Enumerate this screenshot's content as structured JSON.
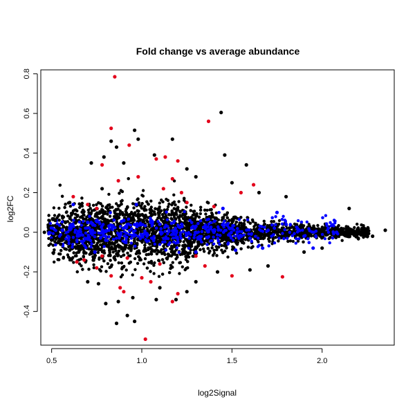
{
  "chart_data": {
    "type": "scatter",
    "title": "Fold change vs average abundance",
    "xlabel": "log2Signal",
    "ylabel": "log2FC",
    "xlim": [
      0.44,
      2.4
    ],
    "ylim": [
      -0.57,
      0.82
    ],
    "x_ticks": [
      0.5,
      1.0,
      1.5,
      2.0
    ],
    "x_tick_labels": [
      "0.5",
      "1.0",
      "1.5",
      "2.0"
    ],
    "y_ticks": [
      -0.4,
      -0.2,
      0.0,
      0.2,
      0.4,
      0.6,
      0.8
    ],
    "y_tick_labels": [
      "-0.4",
      "-0.2",
      "0.0",
      "0.2",
      "0.4",
      "0.6",
      "0.8"
    ],
    "grid": false,
    "legend": "none",
    "colors": {
      "background": "#000000",
      "blue": "#0000ff",
      "red": "#e3001b"
    },
    "series": [
      {
        "color": "#e3001b",
        "points": [
          [
            0.85,
            0.785
          ],
          [
            0.83,
            0.525
          ],
          [
            0.93,
            0.44
          ],
          [
            1.37,
            0.56
          ],
          [
            1.08,
            0.37
          ],
          [
            1.13,
            0.38
          ],
          [
            1.2,
            0.36
          ],
          [
            0.78,
            0.34
          ],
          [
            0.87,
            0.26
          ],
          [
            0.98,
            0.28
          ],
          [
            1.17,
            0.27
          ],
          [
            0.62,
            0.18
          ],
          [
            0.75,
            0.12
          ],
          [
            1.12,
            0.22
          ],
          [
            1.55,
            0.2
          ],
          [
            1.62,
            0.24
          ],
          [
            0.64,
            -0.15
          ],
          [
            0.68,
            -0.14
          ],
          [
            0.75,
            -0.18
          ],
          [
            0.83,
            -0.22
          ],
          [
            0.88,
            -0.28
          ],
          [
            0.9,
            -0.3
          ],
          [
            1.0,
            -0.23
          ],
          [
            1.05,
            -0.25
          ],
          [
            1.17,
            -0.35
          ],
          [
            1.2,
            -0.31
          ],
          [
            1.02,
            -0.54
          ],
          [
            1.5,
            -0.22
          ],
          [
            1.78,
            -0.225
          ],
          [
            1.35,
            -0.17
          ],
          [
            0.7,
            0.14
          ],
          [
            1.25,
            0.15
          ],
          [
            1.4,
            0.13
          ],
          [
            0.92,
            -0.13
          ],
          [
            1.1,
            -0.16
          ],
          [
            1.3,
            -0.12
          ],
          [
            0.78,
            -0.12
          ],
          [
            1.22,
            0.2
          ]
        ]
      },
      {
        "color": "#000000",
        "points": [
          [
            1.44,
            0.605
          ],
          [
            0.83,
            0.46
          ],
          [
            0.86,
            0.43
          ],
          [
            0.96,
            0.515
          ],
          [
            0.98,
            0.47
          ],
          [
            1.17,
            0.47
          ],
          [
            1.07,
            0.39
          ],
          [
            1.46,
            0.39
          ],
          [
            1.58,
            0.34
          ],
          [
            0.79,
            0.38
          ],
          [
            0.9,
            0.35
          ],
          [
            0.78,
            0.22
          ],
          [
            0.72,
            0.35
          ],
          [
            1.3,
            0.28
          ],
          [
            1.25,
            0.32
          ],
          [
            0.86,
            -0.46
          ],
          [
            0.96,
            -0.45
          ],
          [
            0.92,
            -0.42
          ],
          [
            0.8,
            -0.36
          ],
          [
            0.87,
            -0.35
          ],
          [
            0.95,
            -0.33
          ],
          [
            1.08,
            -0.34
          ],
          [
            1.19,
            -0.34
          ],
          [
            1.25,
            -0.3
          ],
          [
            1.1,
            -0.28
          ],
          [
            0.76,
            -0.26
          ],
          [
            0.7,
            -0.25
          ],
          [
            1.3,
            -0.25
          ],
          [
            1.42,
            -0.2
          ],
          [
            1.6,
            -0.19
          ],
          [
            1.7,
            -0.17
          ],
          [
            1.9,
            -0.1
          ],
          [
            2.0,
            -0.08
          ],
          [
            2.15,
            0.12
          ],
          [
            2.35,
            0.01
          ],
          [
            2.28,
            -0.02
          ],
          [
            2.2,
            -0.03
          ],
          [
            1.8,
            0.18
          ],
          [
            1.65,
            0.2
          ],
          [
            1.5,
            0.25
          ],
          [
            0.6,
            0.15
          ],
          [
            0.56,
            0.08
          ],
          [
            0.52,
            0.06
          ],
          [
            0.46,
            0.0
          ],
          [
            0.5,
            -0.04
          ],
          [
            0.55,
            -0.06
          ],
          [
            0.6,
            -0.09
          ],
          [
            0.65,
            -0.1
          ]
        ]
      },
      {
        "color": "#0000ff",
        "points": [
          [
            0.6,
            0.02
          ],
          [
            0.7,
            0.05
          ],
          [
            0.8,
            -0.04
          ],
          [
            0.9,
            0.06
          ],
          [
            1.0,
            -0.02
          ],
          [
            1.1,
            0.04
          ],
          [
            1.2,
            -0.05
          ],
          [
            1.3,
            0.03
          ],
          [
            1.4,
            0.0
          ],
          [
            1.5,
            0.02
          ],
          [
            1.6,
            -0.03
          ],
          [
            1.7,
            0.01
          ],
          [
            1.8,
            0.04
          ],
          [
            1.9,
            -0.02
          ],
          [
            2.08,
            0.0
          ],
          [
            1.95,
            -0.08
          ],
          [
            1.75,
            0.1
          ],
          [
            1.67,
            -0.08
          ],
          [
            1.45,
            0.12
          ],
          [
            0.97,
            0.14
          ],
          [
            0.74,
            -0.1
          ],
          [
            0.62,
            0.14
          ],
          [
            1.52,
            -0.09
          ],
          [
            1.3,
            -0.1
          ]
        ]
      }
    ]
  }
}
